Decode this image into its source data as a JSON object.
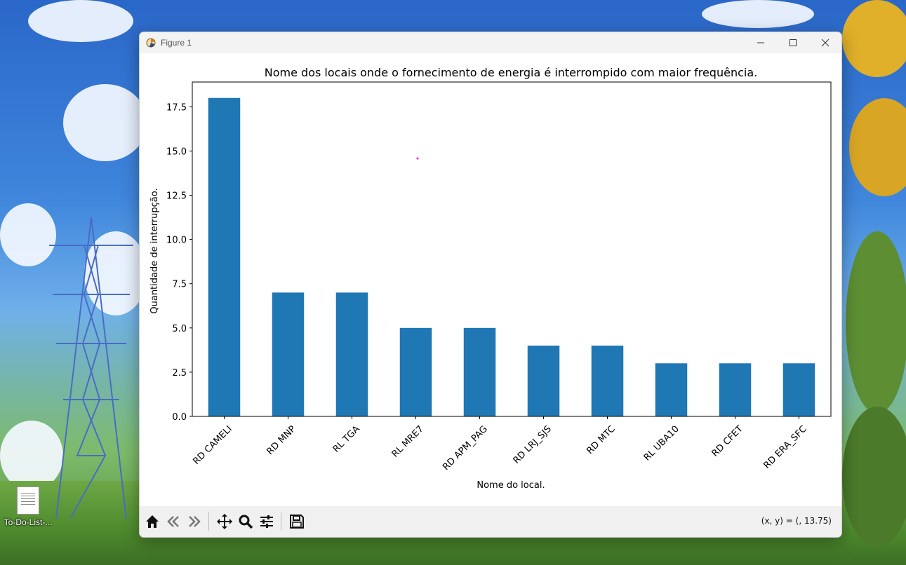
{
  "window": {
    "title": "Figure 1",
    "minimize_icon": "minimize-icon",
    "maximize_icon": "maximize-icon",
    "close_icon": "close-icon"
  },
  "desktop": {
    "icon_label": "To-Do-List-..."
  },
  "toolbar": {
    "buttons": [
      "home-icon",
      "back-arrow-icon",
      "forward-arrow-icon",
      "pan-icon",
      "zoom-icon",
      "configure-subplots-icon",
      "save-icon"
    ],
    "coords_readout": "(x, y) = (, 13.75)"
  },
  "chart_data": {
    "type": "bar",
    "title": "Nome dos locais onde o fornecimento de energia é interrompido com maior frequência.",
    "xlabel": "Nome do local.",
    "ylabel": "Quantidade de interrupção.",
    "categories": [
      "RD CAMELI",
      "RD MNP",
      "RL TGA",
      "RL MRE7",
      "RD APM_PAG",
      "RD LRJ_SJS",
      "RD MTC",
      "RL UBA10",
      "RD CFET",
      "RD ERA_SFC"
    ],
    "values": [
      18,
      7,
      7,
      5,
      5,
      4,
      4,
      3,
      3,
      3
    ],
    "ylim": [
      0,
      18.9
    ],
    "yticks": [
      "0.0",
      "2.5",
      "5.0",
      "7.5",
      "10.0",
      "12.5",
      "15.0",
      "17.5"
    ],
    "ytick_values": [
      0,
      2.5,
      5,
      7.5,
      10,
      12.5,
      15,
      17.5
    ],
    "bar_color": "#1f77b4",
    "grid": false,
    "legend": "none"
  }
}
